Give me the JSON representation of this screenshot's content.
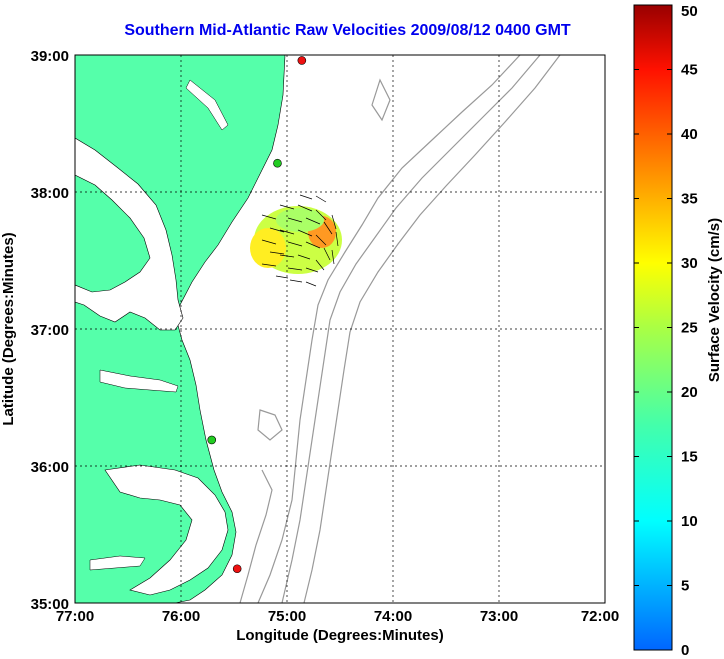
{
  "title": "Southern Mid-Atlantic Raw Velocities 2009/08/12 0400 GMT",
  "x_axis": {
    "label": "Longitude (Degrees:Minutes)",
    "ticks": [
      "77:00",
      "76:00",
      "75:00",
      "74:00",
      "73:00",
      "72:00"
    ]
  },
  "y_axis": {
    "label": "Latitude (Degrees:Minutes)",
    "ticks": [
      "39:00",
      "38:00",
      "37:00",
      "36:00",
      "35:00"
    ]
  },
  "colorbar": {
    "label": "Surface Velocity (cm/s)",
    "ticks": [
      "50",
      "45",
      "40",
      "35",
      "30",
      "25",
      "20",
      "15",
      "10",
      "5",
      "0"
    ],
    "min": 0,
    "max": 50
  },
  "colors": {
    "land": "#55ffaa",
    "water": "#ffffff",
    "bathymetry": "#999999",
    "title": "#0000ee",
    "station_green": "#22cc22",
    "station_red": "#ee1111"
  },
  "map_extent": {
    "lon": [
      -77,
      -72
    ],
    "lat": [
      35,
      39
    ]
  },
  "stations": [
    {
      "color": "red",
      "lon": -74.86,
      "lat": 38.96
    },
    {
      "color": "green",
      "lon": -75.09,
      "lat": 38.21
    },
    {
      "color": "green",
      "lon": -75.71,
      "lat": 36.19
    },
    {
      "color": "red",
      "lon": -75.47,
      "lat": 35.25
    }
  ]
}
